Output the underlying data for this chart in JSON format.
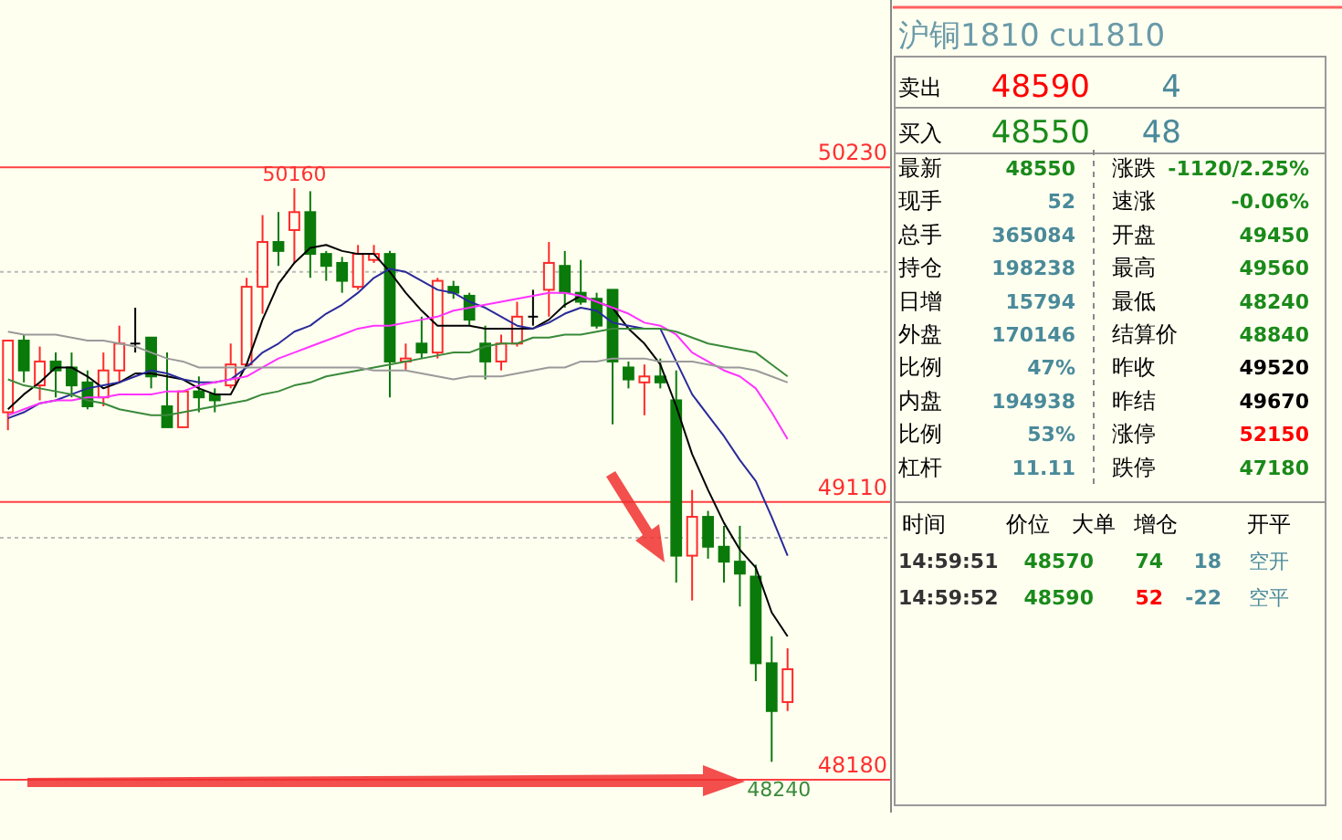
{
  "chart_data": [
    {
      "type": "candlestick",
      "categories": [
        null,
        null,
        null,
        null,
        null,
        null,
        null,
        null,
        null,
        null,
        null,
        null,
        null,
        null,
        null,
        null,
        null,
        null,
        null,
        null,
        null,
        null,
        null,
        null,
        null,
        null,
        null,
        null,
        null,
        null,
        null,
        null,
        null,
        null,
        null,
        null,
        null,
        null,
        null,
        null,
        null,
        null,
        null,
        null,
        null,
        null,
        null,
        null,
        null,
        null,
        null,
        null,
        null,
        null,
        null,
        null
      ],
      "ohlc": [
        [
          49410,
          49650,
          49350,
          49650
        ],
        [
          49650,
          49670,
          49510,
          49550
        ],
        [
          49500,
          49630,
          49450,
          49580
        ],
        [
          49580,
          49610,
          49460,
          49550
        ],
        [
          49560,
          49610,
          49460,
          49500
        ],
        [
          49510,
          49550,
          49420,
          49430
        ],
        [
          49460,
          49610,
          49430,
          49550
        ],
        [
          49550,
          49700,
          49510,
          49640
        ],
        [
          49640,
          49760,
          49610,
          49640
        ],
        [
          49660,
          49660,
          49490,
          49530
        ],
        [
          49430,
          49610,
          49360,
          49360
        ],
        [
          49360,
          49480,
          49360,
          49480
        ],
        [
          49480,
          49530,
          49410,
          49460
        ],
        [
          49470,
          49490,
          49410,
          49450
        ],
        [
          49500,
          49640,
          49490,
          49570
        ],
        [
          49570,
          49860,
          49560,
          49830
        ],
        [
          49830,
          50070,
          49740,
          49980
        ],
        [
          49980,
          50080,
          49900,
          49950
        ],
        [
          50020,
          50160,
          49910,
          50080
        ],
        [
          50080,
          50150,
          49860,
          49940
        ],
        [
          49940,
          49950,
          49850,
          49900
        ],
        [
          49910,
          49930,
          49810,
          49850
        ],
        [
          49830,
          49970,
          49820,
          49940
        ],
        [
          49920,
          49970,
          49910,
          49940
        ],
        [
          49940,
          49950,
          49460,
          49580
        ],
        [
          49580,
          49640,
          49550,
          49590
        ],
        [
          49640,
          49730,
          49590,
          49610
        ],
        [
          49610,
          49860,
          49590,
          49850
        ],
        [
          49830,
          49850,
          49790,
          49810
        ],
        [
          49800,
          49810,
          49700,
          49720
        ],
        [
          49640,
          49700,
          49520,
          49580
        ],
        [
          49580,
          49670,
          49550,
          49640
        ],
        [
          49640,
          49780,
          49630,
          49730
        ],
        [
          49730,
          49820,
          49700,
          49730
        ],
        [
          49820,
          49980,
          49730,
          49910
        ],
        [
          49900,
          49950,
          49760,
          49810
        ],
        [
          49810,
          49920,
          49770,
          49780
        ],
        [
          49790,
          49810,
          49690,
          49700
        ],
        [
          49820,
          49820,
          49370,
          49580
        ],
        [
          49560,
          49580,
          49490,
          49520
        ],
        [
          49510,
          49570,
          49400,
          49530
        ],
        [
          49530,
          49590,
          49490,
          49510
        ],
        [
          49450,
          49550,
          48840,
          48930
        ],
        [
          48930,
          49150,
          48780,
          49060
        ],
        [
          49060,
          49080,
          48920,
          48960
        ],
        [
          48960,
          49030,
          48840,
          48910
        ],
        [
          48910,
          49030,
          48760,
          48870
        ],
        [
          48860,
          48900,
          48510,
          48570
        ],
        [
          48570,
          48660,
          48240,
          48410
        ],
        [
          48440,
          48620,
          48410,
          48550
        ],
        null,
        null,
        null,
        null,
        null,
        null
      ],
      "series": [
        {
          "type": "line",
          "color": "#000000",
          "values": [
            49420,
            49470,
            49510,
            49560,
            49560,
            49530,
            49490,
            49510,
            49540,
            49540,
            49530,
            49520,
            49490,
            49470,
            49470,
            49570,
            49720,
            49840,
            49910,
            49960,
            49970,
            49950,
            49940,
            49940,
            49880,
            49810,
            49750,
            49700,
            49700,
            49700,
            49690,
            49690,
            49690,
            49690,
            49720,
            49770,
            49800,
            49780,
            49760,
            49690,
            49640,
            49570,
            49430,
            49270,
            49150,
            49040,
            48950,
            48890,
            48740,
            48660,
            null,
            null,
            null,
            null,
            null,
            null
          ]
        },
        {
          "type": "line",
          "color": "#2a2a9a",
          "values": [
            49390,
            49410,
            49440,
            49450,
            49470,
            49490,
            49500,
            49510,
            49530,
            49550,
            49540,
            49520,
            49510,
            49510,
            49520,
            49560,
            49610,
            49640,
            49680,
            49700,
            49740,
            49770,
            49810,
            49860,
            49890,
            49880,
            49850,
            49820,
            49810,
            49780,
            49760,
            49730,
            49700,
            49690,
            49710,
            49740,
            49760,
            49750,
            49710,
            49700,
            49690,
            49690,
            49580,
            49470,
            49400,
            49330,
            49250,
            49180,
            49060,
            48930,
            null,
            null,
            null,
            null,
            null,
            null
          ]
        },
        {
          "type": "line",
          "color": "#ff33ff",
          "values": [
            49400,
            49420,
            49440,
            49450,
            49450,
            49460,
            49460,
            49470,
            49470,
            49470,
            49480,
            49480,
            49500,
            49510,
            49520,
            49530,
            49560,
            49590,
            49610,
            49630,
            49650,
            49670,
            49690,
            49700,
            49700,
            49710,
            49720,
            49730,
            49750,
            49760,
            49770,
            49780,
            49790,
            49800,
            49810,
            49810,
            49800,
            49780,
            49760,
            49740,
            49710,
            49700,
            49670,
            49610,
            49580,
            49550,
            49530,
            49490,
            49410,
            49320,
            null,
            null,
            null,
            null,
            null,
            null
          ]
        },
        {
          "type": "line",
          "color": "#3a8a3a",
          "values": [
            49520,
            49500,
            49490,
            49480,
            49470,
            49450,
            49440,
            49420,
            49410,
            49400,
            49400,
            49410,
            49420,
            49430,
            49440,
            49450,
            49470,
            49480,
            49500,
            49510,
            49530,
            49540,
            49550,
            49560,
            49570,
            49580,
            49590,
            49600,
            49610,
            49610,
            49630,
            49640,
            49640,
            49660,
            49660,
            49670,
            49670,
            49680,
            49690,
            49690,
            49690,
            49690,
            49680,
            49660,
            49640,
            49630,
            49620,
            49610,
            49570,
            49530,
            null,
            null,
            null,
            null,
            null,
            null
          ]
        },
        {
          "type": "line",
          "color": "#9a9a9a",
          "values": [
            49680,
            49670,
            49670,
            49670,
            49660,
            49650,
            49650,
            49640,
            49630,
            49610,
            49590,
            49580,
            49560,
            49560,
            49560,
            49560,
            49560,
            49560,
            49560,
            49560,
            49560,
            49560,
            49560,
            49550,
            49550,
            49550,
            49540,
            49530,
            49520,
            49530,
            49530,
            49530,
            49540,
            49550,
            49560,
            49560,
            49580,
            49580,
            49590,
            49590,
            49590,
            49580,
            49580,
            49580,
            49570,
            49560,
            49560,
            49550,
            49530,
            49510,
            null,
            null,
            null,
            null,
            null,
            null
          ]
        }
      ],
      "ylim": [
        48070,
        50790
      ],
      "yticks": [
        48180,
        49110,
        50230
      ],
      "grid": "y",
      "tick_labels": "y",
      "ref_lines": [
        {
          "axis": "y",
          "value": 49880,
          "color": "#bbbbbb",
          "line_style": "dotted"
        },
        {
          "axis": "y",
          "value": 48990,
          "color": "#bbbbbb",
          "line_style": "dotted"
        }
      ],
      "annotations": [
        {
          "text": "50160",
          "y": 50160
        },
        {
          "text": "48240",
          "y": 48240
        }
      ]
    },
    {
      "type": "other",
      "title": "沪铜1810  cu1810",
      "cell_labels": [
        [
          "卖出",
          "48590",
          "4"
        ],
        [
          "买入",
          "48550",
          "48"
        ],
        [
          "最新",
          "48550",
          "涨跌",
          "-1120/2.25%"
        ],
        [
          "现手",
          "52",
          "速涨",
          "-0.06%"
        ],
        [
          "总手",
          "365084",
          "开盘",
          "49450"
        ],
        [
          "持仓",
          "198238",
          "最高",
          "49560"
        ],
        [
          "日增",
          "15794",
          "最低",
          "48240"
        ],
        [
          "外盘",
          "170146",
          "结算价",
          "48840"
        ],
        [
          "比例",
          "47%",
          "昨收",
          "49520"
        ],
        [
          "内盘",
          "194938",
          "昨结",
          "49670"
        ],
        [
          "比例",
          "53%",
          "涨停",
          "52150"
        ],
        [
          "杠杆",
          "11.11",
          "跌停",
          "47180"
        ],
        [
          "时间",
          "价位",
          "大单",
          "增仓",
          "开平"
        ],
        [
          "14:59:51",
          "48570",
          "74",
          "18",
          "空开"
        ],
        [
          "14:59:52",
          "48590",
          "52",
          "-22",
          "空平"
        ]
      ],
      "colors": [
        [
          "#000000",
          "#ff0000",
          "#4a8a9a"
        ],
        [
          "#000000",
          "#1a8a1a",
          "#4a8a9a"
        ],
        [
          "#000000",
          "#1a8a1a",
          "#000000",
          "#1a8a1a"
        ],
        [
          "#000000",
          "#4a8a9a",
          "#000000",
          "#1a8a1a"
        ],
        [
          "#000000",
          "#4a8a9a",
          "#000000",
          "#1a8a1a"
        ],
        [
          "#000000",
          "#4a8a9a",
          "#000000",
          "#1a8a1a"
        ],
        [
          "#000000",
          "#4a8a9a",
          "#000000",
          "#1a8a1a"
        ],
        [
          "#000000",
          "#4a8a9a",
          "#000000",
          "#1a8a1a"
        ],
        [
          "#000000",
          "#4a8a9a",
          "#000000",
          "#000000"
        ],
        [
          "#000000",
          "#4a8a9a",
          "#000000",
          "#000000"
        ],
        [
          "#000000",
          "#4a8a9a",
          "#000000",
          "#ff0000"
        ],
        [
          "#000000",
          "#4a8a9a",
          "#000000",
          "#1a8a1a"
        ],
        [
          "#000000",
          "#000000",
          "#000000",
          "#000000",
          "#000000"
        ],
        [
          "#333333",
          "#1a8a1a",
          "#1a8a1a",
          "#4a8a9a",
          "#4a8a9a"
        ],
        [
          "#333333",
          "#1a8a1a",
          "#ff0000",
          "#4a8a9a",
          "#4a8a9a"
        ]
      ]
    }
  ]
}
